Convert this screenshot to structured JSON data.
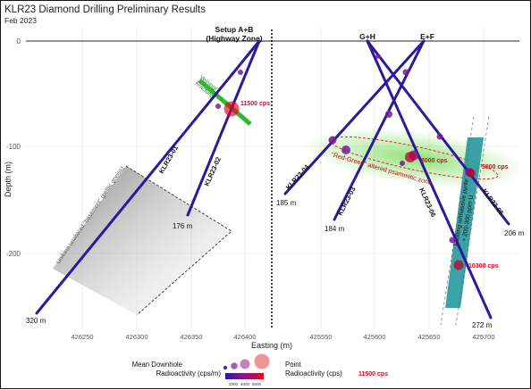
{
  "header": {
    "title": "KLR23 Diamond Drilling Preliminary Results",
    "subtitle": "Feb 2023"
  },
  "chart": {
    "x_axis_title": "Easting (m)",
    "y_axis_title": "Depth (m)",
    "y_ticks": [
      "0",
      "-100",
      "-200"
    ],
    "x_ticks_left": [
      "426250",
      "426300",
      "426350",
      "426400"
    ],
    "x_ticks_right": [
      "425550",
      "425600",
      "425650",
      "425700"
    ]
  },
  "setups": {
    "ab_line1": "Setup A+B",
    "ab_line2": "(Highway Zone)",
    "gh": "G+H",
    "ef": "E+F"
  },
  "holes": {
    "h01": "KLR23-01",
    "h02": "KLR23-02",
    "h03": "KLR23-03",
    "h04": "KLR23-04",
    "h05": "KLR23-05",
    "h06": "KLR23-06"
  },
  "depths": {
    "d320": "320 m",
    "d176": "176 m",
    "d185": "185 m",
    "d184": "184 m",
    "d272": "272 m",
    "d206": "206 m"
  },
  "readings": {
    "r11500": "11500 cps",
    "r8000": "8000 cps",
    "r5800": "5800 cps",
    "r10300": "10300 cps"
  },
  "annotations": {
    "veining1": "Veining/",
    "veining2": "Fractures",
    "red_green1": "\"Red-Green\" altered psammitic zone",
    "basement": "Uniform unaltered \"basement\" (pelitic gneiss)",
    "faulting1": "Faulting w/massive pyrite",
    "faulting2": "+ 200-300 ppm U"
  },
  "legend": {
    "mean_label1": "Mean Downhole",
    "mean_label2": "Radioactivity (cps/m)",
    "scale_ticks": [
      "2000",
      "4000",
      "6000"
    ],
    "point_label1": "Point",
    "point_label2": "Radioactivity (cps)",
    "point_example": "11500 cps"
  },
  "colors": {
    "hole": "#2b1a9a",
    "reading": "#e8001c",
    "fault_zone": "#2a9aa0",
    "veining": "#2db82d",
    "alteration": "#7ed957"
  }
}
